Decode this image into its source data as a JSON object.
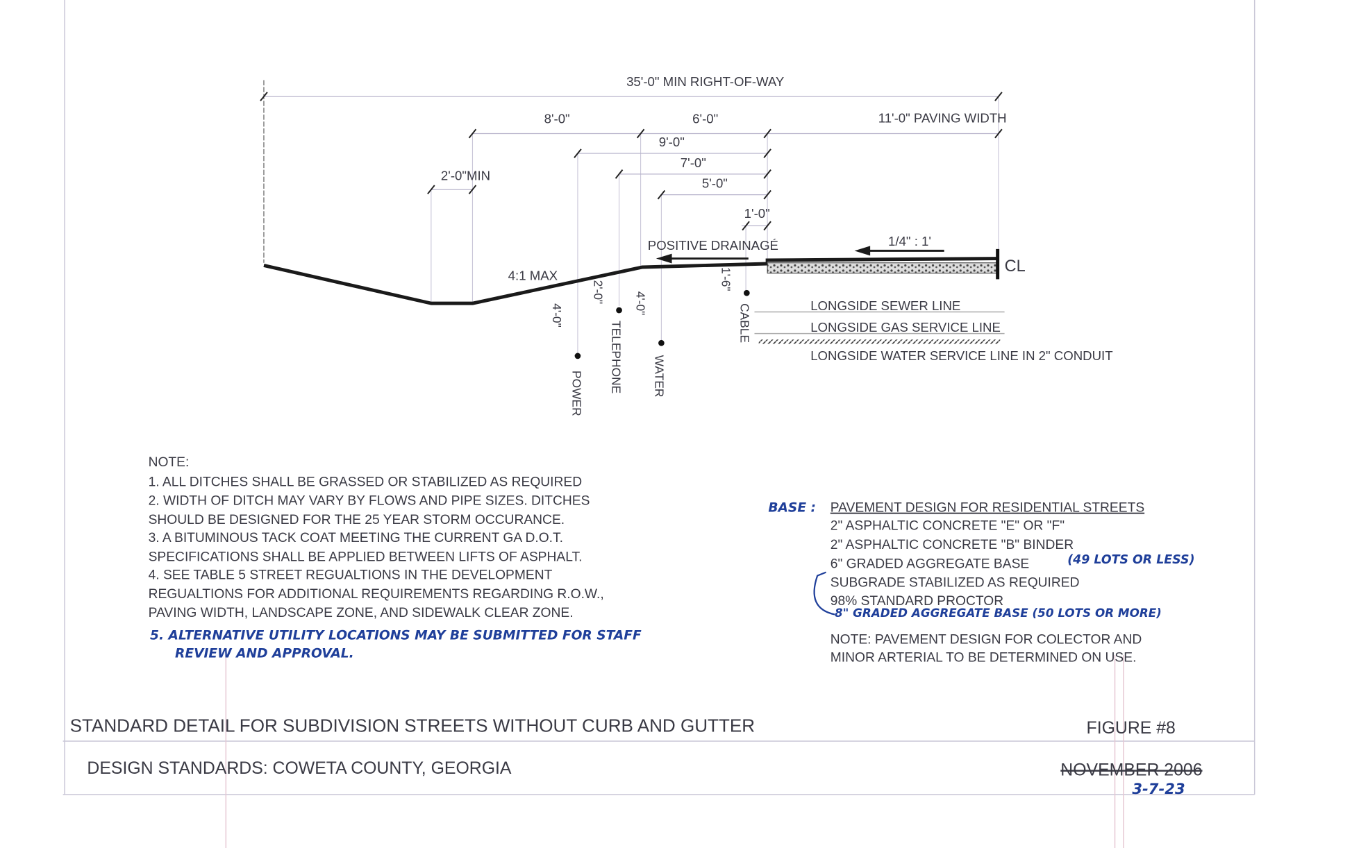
{
  "drawing": {
    "dimensions": {
      "right_of_way": "35'-0\" MIN RIGHT-OF-WAY",
      "d8": "8'-0\"",
      "d6": "6'-0\"",
      "paving_width": "11'-0\" PAVING WIDTH",
      "d9": "9'-0\"",
      "d7": "7'-0\"",
      "d5": "5'-0\"",
      "d1": "1'-0\"",
      "ditch_min": "2'-0\"MIN",
      "slope_max": "4:1 MAX",
      "positive_drainage": "POSITIVE DRAINAGÉ",
      "cross_slope": "1/4\" : 1'",
      "centerline": "CL"
    },
    "depths": {
      "power": "4'-0\"",
      "telephone": "2'-0\"",
      "water": "4'-0\"",
      "cable": "1'-6\""
    },
    "utilities": {
      "power": "POWER",
      "telephone": "TELEPHONE",
      "water": "WATER",
      "cable": "CABLE",
      "sewer_line": "LONGSIDE SEWER LINE",
      "gas_line": "LONGSIDE GAS SERVICE LINE",
      "water_line": "LONGSIDE WATER SERVICE LINE IN 2\" CONDUIT"
    }
  },
  "notes": {
    "heading": "NOTE:",
    "lines": [
      "1.  ALL DITCHES SHALL BE GRASSED OR STABILIZED AS REQUIRED",
      "2.  WIDTH OF DITCH MAY VARY BY FLOWS AND PIPE SIZES.  DITCHES",
      "SHOULD BE DESIGNED FOR THE 25 YEAR STORM OCCURANCE.",
      "3.  A BITUMINOUS TACK COAT MEETING THE CURRENT GA D.O.T.",
      "SPECIFICATIONS SHALL BE APPLIED BETWEEN LIFTS OF ASPHALT.",
      "4.  SEE TABLE 5 STREET REGUALTIONS  IN THE DEVELOPMENT",
      "REGUALTIONS FOR ADDITIONAL REQUIREMENTS REGARDING R.O.W.,",
      "PAVING WIDTH, LANDSCAPE ZONE, AND SIDEWALK CLEAR ZONE."
    ],
    "handwritten": [
      "5. ALTERNATIVE UTILITY LOCATIONS MAY BE SUBMITTED FOR STAFF",
      "REVIEW AND APPROVAL."
    ]
  },
  "pavement": {
    "base_annotation": "BASE :",
    "title": "PAVEMENT DESIGN FOR RESIDENTIAL STREETS",
    "lines": [
      "2\" ASPHALTIC CONCRETE \"E\" OR \"F\"",
      "2\" ASPHALTIC CONCRETE \"B\" BINDER",
      "6\" GRADED AGGREGATE BASE",
      "SUBGRADE STABILIZED AS REQUIRED",
      "98% STANDARD PROCTOR"
    ],
    "hand_49": "(49 LOTS OR LESS)",
    "hand_8in": "8\" GRADED AGGREGATE BASE (50 LOTS OR MORE)",
    "note_lines": [
      "NOTE:  PAVEMENT DESIGN FOR COLECTOR AND",
      "MINOR ARTERIAL TO BE DETERMINED ON USE."
    ]
  },
  "title_block": {
    "title": "STANDARD DETAIL FOR SUBDIVISION STREETS WITHOUT CURB AND GUTTER",
    "figure": "FIGURE #8",
    "agency": "DESIGN STANDARDS:  COWETA COUNTY, GEORGIA",
    "old_date": "NOVEMBER 2006",
    "revised_date": "3-7-23"
  },
  "colors": {
    "ink": "#3a3a44",
    "handwriting": "#1f3f9a",
    "line": "#222222"
  }
}
